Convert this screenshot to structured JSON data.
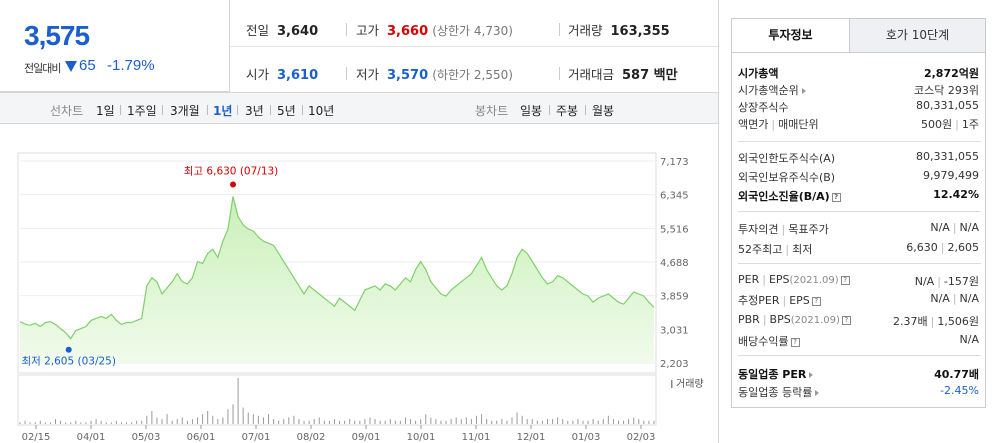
{
  "price": {
    "current": "3,575",
    "change_label": "전일대비",
    "change": "65",
    "change_rate": "-1.79%"
  },
  "stats": {
    "prev_close": {
      "label": "전일",
      "value": "3,640"
    },
    "high": {
      "label": "고가",
      "value": "3,660",
      "limit_label": "(상한가 4,730)"
    },
    "volume": {
      "label": "거래량",
      "value": "163,355"
    },
    "open": {
      "label": "시가",
      "value": "3,610"
    },
    "low": {
      "label": "저가",
      "value": "3,570",
      "limit_label": "(하한가 2,550)"
    },
    "amount": {
      "label": "거래대금",
      "value": "587 백만"
    }
  },
  "period_bar": {
    "line_label": "선차트",
    "line_periods": [
      "1일",
      "1주일",
      "3개월",
      "1년",
      "3년",
      "5년",
      "10년"
    ],
    "selected": "1년",
    "candle_label": "봉차트",
    "candle_periods": [
      "일봉",
      "주봉",
      "월봉"
    ]
  },
  "chart_data": {
    "type": "area",
    "y_ticks": [
      "7,173",
      "6,345",
      "5,516",
      "4,688",
      "3,859",
      "3,031",
      "2,203"
    ],
    "ylim": [
      2203,
      7173
    ],
    "x_ticks": [
      "02/15",
      "04/01",
      "05/03",
      "06/01",
      "07/01",
      "08/02",
      "09/01",
      "10/01",
      "11/01",
      "12/01",
      "01/03",
      "02/03"
    ],
    "high_label": "최고 6,630 (07/13)",
    "low_label": "최저 2,605 (03/25)",
    "volume_label": "거래량",
    "colors": {
      "line": "#7fd06a",
      "fill_top": "#c9f0b8",
      "fill_bottom": "#f1fbec",
      "high_dot": "#d40000",
      "low_dot": "#1a5fcc",
      "volume": "#9a9a9a"
    },
    "series": [
      {
        "values": [
          3220,
          3160,
          3130,
          3180,
          3100,
          3200,
          3220,
          3150,
          3050,
          2950,
          2800,
          3000,
          3050,
          3100,
          3250,
          3300,
          3350,
          3300,
          3400,
          3250,
          3150,
          3200,
          3200,
          3250,
          3300,
          4100,
          4300,
          4200,
          3900,
          4050,
          4200,
          4400,
          4200,
          4150,
          4300,
          4700,
          4650,
          4900,
          5000,
          4800,
          5200,
          5500,
          6300,
          5800,
          5600,
          5500,
          5450,
          5300,
          5200,
          5150,
          5100,
          4900,
          4700,
          4500,
          4300,
          4100,
          3900,
          4100,
          4000,
          3900,
          3800,
          3700,
          3600,
          3800,
          3700,
          3600,
          3500,
          3750,
          4000,
          4050,
          4100,
          4000,
          4150,
          4100,
          4000,
          4150,
          4300,
          4200,
          4500,
          4700,
          4500,
          4200,
          4050,
          3900,
          3850,
          4000,
          4100,
          4200,
          4300,
          4400,
          4600,
          4800,
          4500,
          4300,
          4100,
          4000,
          4100,
          4400,
          4800,
          5000,
          4900,
          4700,
          4500,
          4300,
          4150,
          4200,
          4350,
          4300,
          4200,
          4100,
          4000,
          3900,
          3850,
          3700,
          3800,
          3850,
          3900,
          3800,
          3700,
          3650,
          3800,
          3950,
          3900,
          3850,
          3700,
          3575
        ]
      },
      {
        "name": "거래량",
        "values": [
          1,
          2,
          1,
          1,
          2,
          1,
          1,
          3,
          2,
          1,
          1,
          2,
          1,
          1,
          2,
          3,
          2,
          1,
          1,
          2,
          1,
          1,
          1,
          2,
          2,
          5,
          8,
          4,
          3,
          6,
          2,
          3,
          4,
          2,
          3,
          4,
          6,
          8,
          5,
          3,
          4,
          9,
          12,
          28,
          10,
          7,
          6,
          5,
          4,
          6,
          3,
          2,
          3,
          4,
          5,
          3,
          2,
          2,
          3,
          4,
          2,
          2,
          3,
          2,
          2,
          3,
          2,
          2,
          3,
          4,
          3,
          2,
          2,
          3,
          2,
          2,
          4,
          3,
          2,
          3,
          6,
          4,
          3,
          2,
          2,
          3,
          4,
          3,
          4,
          3,
          5,
          6,
          3,
          2,
          2,
          3,
          2,
          4,
          7,
          5,
          3,
          3,
          2,
          2,
          3,
          3,
          4,
          3,
          2,
          2,
          3,
          2,
          2,
          3,
          2,
          3,
          5,
          3,
          2,
          2,
          3,
          4,
          3,
          2,
          2,
          2
        ]
      }
    ]
  },
  "right": {
    "tabs": [
      "투자정보",
      "호가 10단계"
    ],
    "rows": [
      {
        "k": "시가총액",
        "v": "2,872억원"
      },
      {
        "k": "시가총액순위",
        "v": "코스닥 293위"
      },
      {
        "k": "상장주식수",
        "v": "80,331,055"
      },
      {
        "k": "액면가",
        "k2": "매매단위",
        "v": "500원",
        "v2": "1주"
      },
      {
        "k": "외국인한도주식수(A)",
        "v": "80,331,055"
      },
      {
        "k": "외국인보유주식수(B)",
        "v": "9,979,499"
      },
      {
        "k": "외국인소진율(B/A)",
        "v": "12.42%"
      },
      {
        "k": "투자의견",
        "k2": "목표주가",
        "v": "N/A",
        "v2": "N/A"
      },
      {
        "k": "52주최고",
        "k2": "최저",
        "v": "6,630",
        "v2": "2,605"
      },
      {
        "k": "PER",
        "k2": "EPS",
        "k3": "(2021.09)",
        "v": "N/A",
        "v2": "-157원"
      },
      {
        "k": "추정PER",
        "k2": "EPS",
        "v": "N/A",
        "v2": "N/A"
      },
      {
        "k": "PBR",
        "k2": "BPS",
        "k3": "(2021.09)",
        "v": "2.37배",
        "v2": "1,506원"
      },
      {
        "k": "배당수익률",
        "v": "N/A"
      },
      {
        "k": "동일업종 PER",
        "v": "40.77배"
      },
      {
        "k": "동일업종 등락률",
        "v": "-2.45%"
      }
    ]
  }
}
